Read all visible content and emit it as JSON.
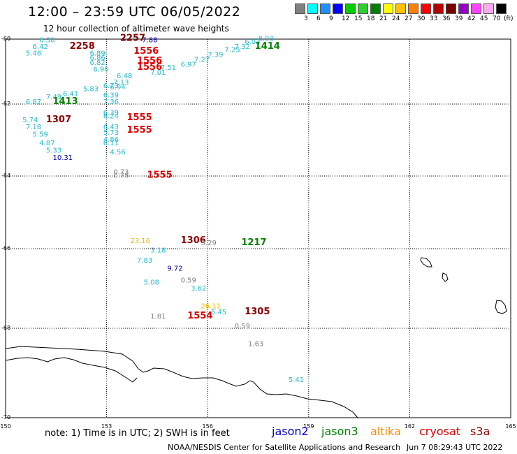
{
  "title": "12:00 – 23:59 UTC 06/05/2022",
  "subtitle": "12 hour collection of altimeter wave heights",
  "scale": {
    "labels": [
      "3",
      "6",
      "9",
      "12",
      "15",
      "18",
      "21",
      "24",
      "27",
      "30",
      "33",
      "36",
      "39",
      "42",
      "45",
      "70"
    ],
    "unit": "(ft)",
    "colors": [
      "#808080",
      "#00ffff",
      "#1e90ff",
      "#0000ff",
      "#00cc00",
      "#32cd32",
      "#008000",
      "#ffff00",
      "#ffc000",
      "#ff8000",
      "#ff0000",
      "#b00000",
      "#7a0000",
      "#9900cc",
      "#ff44ff",
      "#ffaaee",
      "#000000"
    ]
  },
  "axes": {
    "lat_labels": [
      "-60",
      "-62",
      "-64",
      "-66",
      "-68",
      "-70"
    ],
    "lon_labels": [
      "150",
      "153",
      "156",
      "159",
      "162",
      "165"
    ]
  },
  "observations": [
    {
      "t": "2257",
      "lon": 153.4,
      "lat": -60.05,
      "c": "#8b0000"
    },
    {
      "t": "7.88",
      "lon": 154.05,
      "lat": -60.1,
      "c": "#0000aa"
    },
    {
      "t": "6.38",
      "lon": 151.0,
      "lat": -60.1,
      "c": "#22bbcc"
    },
    {
      "t": "6.42",
      "lon": 150.8,
      "lat": -60.3,
      "c": "#22bbcc"
    },
    {
      "t": "2258",
      "lon": 151.9,
      "lat": -60.3,
      "c": "#8b0000"
    },
    {
      "t": "5.48",
      "lon": 150.6,
      "lat": -60.5,
      "c": "#22bbcc"
    },
    {
      "t": "6.89",
      "lon": 152.5,
      "lat": -60.5,
      "c": "#22bbcc"
    },
    {
      "t": "1556",
      "lon": 153.8,
      "lat": -60.45,
      "c": "#dd0000"
    },
    {
      "t": "6.86",
      "lon": 152.5,
      "lat": -60.65,
      "c": "#22bbcc"
    },
    {
      "t": "6.82",
      "lon": 152.5,
      "lat": -60.8,
      "c": "#22bbcc"
    },
    {
      "t": "1556",
      "lon": 153.9,
      "lat": -60.75,
      "c": "#dd0000"
    },
    {
      "t": "6.96",
      "lon": 152.6,
      "lat": -61.0,
      "c": "#22bbcc"
    },
    {
      "t": "1556",
      "lon": 153.9,
      "lat": -60.95,
      "c": "#dd0000"
    },
    {
      "t": "7.01",
      "lon": 154.3,
      "lat": -61.1,
      "c": "#22bbcc"
    },
    {
      "t": "7.51",
      "lon": 154.6,
      "lat": -60.95,
      "c": "#22bbcc"
    },
    {
      "t": "6.97",
      "lon": 155.2,
      "lat": -60.85,
      "c": "#22bbcc"
    },
    {
      "t": "7.27",
      "lon": 155.6,
      "lat": -60.7,
      "c": "#22bbcc"
    },
    {
      "t": "7.39",
      "lon": 156.0,
      "lat": -60.55,
      "c": "#22bbcc"
    },
    {
      "t": "7.25",
      "lon": 156.5,
      "lat": -60.4,
      "c": "#22bbcc"
    },
    {
      "t": "7.32",
      "lon": 156.8,
      "lat": -60.3,
      "c": "#22bbcc"
    },
    {
      "t": "6.03",
      "lon": 157.1,
      "lat": -60.15,
      "c": "#22bbcc"
    },
    {
      "t": "8.03",
      "lon": 157.5,
      "lat": -60.05,
      "c": "#22bbcc"
    },
    {
      "t": "1414",
      "lon": 157.4,
      "lat": -60.3,
      "c": "#008000"
    },
    {
      "t": "6.48",
      "lon": 153.3,
      "lat": -61.2,
      "c": "#22bbcc"
    },
    {
      "t": "7.13",
      "lon": 153.2,
      "lat": -61.4,
      "c": "#22bbcc"
    },
    {
      "t": "6.73",
      "lon": 152.9,
      "lat": -61.5,
      "c": "#22bbcc"
    },
    {
      "t": "6.94",
      "lon": 153.1,
      "lat": -61.55,
      "c": "#22bbcc"
    },
    {
      "t": "5.83",
      "lon": 152.3,
      "lat": -61.6,
      "c": "#22bbcc"
    },
    {
      "t": "6.41",
      "lon": 151.7,
      "lat": -61.75,
      "c": "#22bbcc"
    },
    {
      "t": "6.39",
      "lon": 152.9,
      "lat": -61.8,
      "c": "#22bbcc"
    },
    {
      "t": "7.49",
      "lon": 151.2,
      "lat": -61.85,
      "c": "#22bbcc"
    },
    {
      "t": "7.36",
      "lon": 152.9,
      "lat": -62.0,
      "c": "#22bbcc"
    },
    {
      "t": "6.87",
      "lon": 150.6,
      "lat": -62.0,
      "c": "#22bbcc"
    },
    {
      "t": "1413",
      "lon": 151.4,
      "lat": -62.0,
      "c": "#008000"
    },
    {
      "t": "6.39",
      "lon": 152.9,
      "lat": -62.3,
      "c": "#22bbcc"
    },
    {
      "t": "6.24",
      "lon": 152.9,
      "lat": -62.4,
      "c": "#22bbcc"
    },
    {
      "t": "1555",
      "lon": 153.6,
      "lat": -62.45,
      "c": "#dd0000"
    },
    {
      "t": "5.74",
      "lon": 150.5,
      "lat": -62.5,
      "c": "#22bbcc"
    },
    {
      "t": "1307",
      "lon": 151.2,
      "lat": -62.5,
      "c": "#8b0000"
    },
    {
      "t": "7.18",
      "lon": 150.6,
      "lat": -62.7,
      "c": "#22bbcc"
    },
    {
      "t": "6.43",
      "lon": 152.9,
      "lat": -62.7,
      "c": "#22bbcc"
    },
    {
      "t": "5.73",
      "lon": 152.9,
      "lat": -62.85,
      "c": "#22bbcc"
    },
    {
      "t": "1555",
      "lon": 153.6,
      "lat": -62.8,
      "c": "#dd0000"
    },
    {
      "t": "5.59",
      "lon": 150.8,
      "lat": -62.9,
      "c": "#22bbcc"
    },
    {
      "t": "4.86",
      "lon": 152.9,
      "lat": -63.05,
      "c": "#22bbcc"
    },
    {
      "t": "4.87",
      "lon": 151.0,
      "lat": -63.15,
      "c": "#22bbcc"
    },
    {
      "t": "6.11",
      "lon": 152.9,
      "lat": -63.15,
      "c": "#22bbcc"
    },
    {
      "t": "5.33",
      "lon": 151.2,
      "lat": -63.35,
      "c": "#22bbcc"
    },
    {
      "t": "4.56",
      "lon": 153.1,
      "lat": -63.4,
      "c": "#22bbcc"
    },
    {
      "t": "10.31",
      "lon": 151.4,
      "lat": -63.55,
      "c": "#0000aa"
    },
    {
      "t": "0.73",
      "lon": 153.2,
      "lat": -63.95,
      "c": "#808080"
    },
    {
      "t": "0.78",
      "lon": 153.2,
      "lat": -64.05,
      "c": "#808080"
    },
    {
      "t": "1555",
      "lon": 154.2,
      "lat": -64.05,
      "c": "#dd0000"
    },
    {
      "t": "23.16",
      "lon": 153.7,
      "lat": -65.85,
      "c": "#eebb00"
    },
    {
      "t": "1306",
      "lon": 155.2,
      "lat": -65.85,
      "c": "#8b0000"
    },
    {
      "t": "3.29",
      "lon": 155.8,
      "lat": -65.9,
      "c": "#808080"
    },
    {
      "t": "1217",
      "lon": 157.0,
      "lat": -65.9,
      "c": "#008000"
    },
    {
      "t": "3.18",
      "lon": 154.3,
      "lat": -66.1,
      "c": "#22bbcc"
    },
    {
      "t": "7.83",
      "lon": 153.9,
      "lat": -66.35,
      "c": "#22bbcc"
    },
    {
      "t": "9.72",
      "lon": 154.8,
      "lat": -66.55,
      "c": "#0000aa"
    },
    {
      "t": "5.08",
      "lon": 154.1,
      "lat": -66.9,
      "c": "#22bbcc"
    },
    {
      "t": "0.59",
      "lon": 155.2,
      "lat": -66.85,
      "c": "#808080"
    },
    {
      "t": "3.62",
      "lon": 155.5,
      "lat": -67.05,
      "c": "#22bbcc"
    },
    {
      "t": "26.11",
      "lon": 155.8,
      "lat": -67.5,
      "c": "#eebb00"
    },
    {
      "t": "5.45",
      "lon": 156.1,
      "lat": -67.65,
      "c": "#22bbcc"
    },
    {
      "t": "1305",
      "lon": 157.1,
      "lat": -67.65,
      "c": "#8b0000"
    },
    {
      "t": "1.81",
      "lon": 154.3,
      "lat": -67.75,
      "c": "#808080"
    },
    {
      "t": "1554",
      "lon": 155.4,
      "lat": -67.75,
      "c": "#dd0000"
    },
    {
      "t": "0.59",
      "lon": 156.8,
      "lat": -68.0,
      "c": "#808080"
    },
    {
      "t": "1.63",
      "lon": 157.2,
      "lat": -68.4,
      "c": "#808080"
    },
    {
      "t": "5.41",
      "lon": 158.4,
      "lat": -69.2,
      "c": "#22bbcc"
    }
  ],
  "footer": {
    "note": "note:  1) Time is in UTC;  2) SWH is in feet",
    "satellites": [
      {
        "name": "jason2",
        "color": "#0000cc"
      },
      {
        "name": "jason3",
        "color": "#008000"
      },
      {
        "name": "altika",
        "color": "#ff8c00"
      },
      {
        "name": "cryosat",
        "color": "#dd0000"
      },
      {
        "name": "s3a",
        "color": "#8b0000"
      }
    ],
    "credit": "NOAA/NESDIS Center for Satellite Applications and Research",
    "timestamp": "Jun  7 08:29:43 UTC 2022"
  }
}
